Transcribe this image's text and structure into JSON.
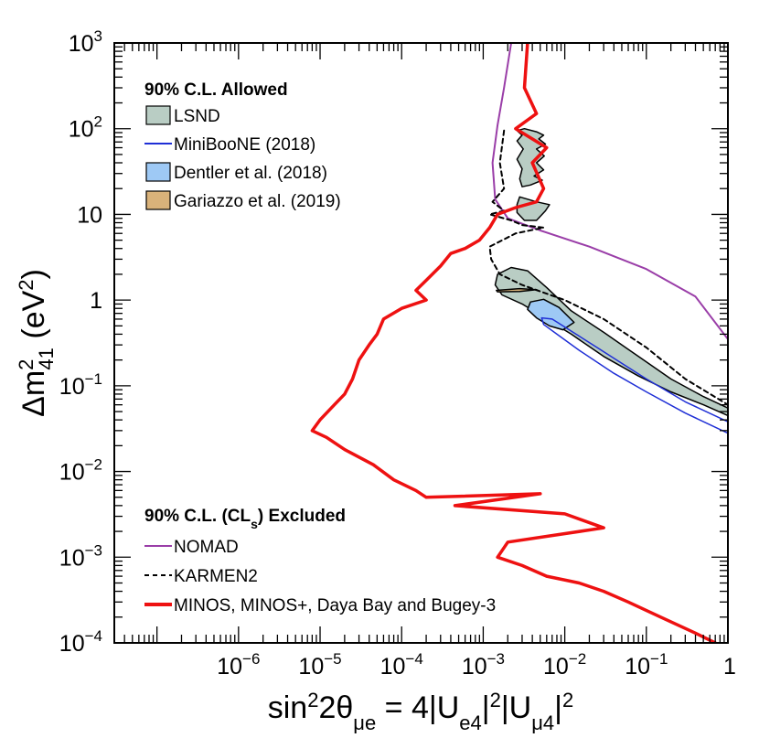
{
  "chart_data": {
    "type": "line",
    "x_scale": "log",
    "y_scale": "log",
    "xlim": [
      3e-08,
      1
    ],
    "ylim": [
      0.0001,
      1000
    ],
    "x_ticks": [
      {
        "value": 1e-06,
        "base": "10",
        "exp": "−6"
      },
      {
        "value": 1e-05,
        "base": "10",
        "exp": "−5"
      },
      {
        "value": 0.0001,
        "base": "10",
        "exp": "−4"
      },
      {
        "value": 0.001,
        "base": "10",
        "exp": "−3"
      },
      {
        "value": 0.01,
        "base": "10",
        "exp": "−2"
      },
      {
        "value": 0.1,
        "base": "10",
        "exp": "−1"
      },
      {
        "value": 1,
        "base": "1",
        "exp": ""
      }
    ],
    "y_ticks": [
      {
        "value": 0.0001,
        "base": "10",
        "exp": "−4"
      },
      {
        "value": 0.001,
        "base": "10",
        "exp": "−3"
      },
      {
        "value": 0.01,
        "base": "10",
        "exp": "−2"
      },
      {
        "value": 0.1,
        "base": "10",
        "exp": "−1"
      },
      {
        "value": 1,
        "base": "1",
        "exp": ""
      },
      {
        "value": 10,
        "base": "10",
        "exp": ""
      },
      {
        "value": 100,
        "base": "10",
        "exp": "2"
      },
      {
        "value": 1000,
        "base": "10",
        "exp": "3"
      }
    ],
    "xlabel": {
      "main": "sin",
      "sup1": "2",
      "part2": "2θ",
      "sub1": "μe",
      "part3": " = 4|U",
      "sub2": "e4",
      "part4": "|",
      "sup2": "2",
      "part5": "|U",
      "sub3": "μ4",
      "part6": "|",
      "sup3": "2"
    },
    "ylabel": {
      "main": "Δm",
      "sup": "2",
      "sub": "41",
      "rest": " (eV",
      "sup2": "2",
      "close": ")"
    },
    "legend_allowed": {
      "heading": "90% C.L. Allowed",
      "entries": [
        {
          "label": "LSND",
          "swatch": "box",
          "fill": "#b9cdc4",
          "stroke": "#000000"
        },
        {
          "label": "MiniBooNE (2018)",
          "swatch": "line",
          "color": "#1f2fd6"
        },
        {
          "label": "Dentler et al. (2018)",
          "swatch": "box",
          "fill": "#9ec9f5",
          "stroke": "#000000"
        },
        {
          "label": "Gariazzo et al. (2019)",
          "swatch": "box",
          "fill": "#d9b27a",
          "stroke": "#000000"
        }
      ]
    },
    "legend_excluded": {
      "heading_pre": "90% C.L. (CL",
      "heading_sub": "s",
      "heading_post": ") Excluded",
      "entries": [
        {
          "label": "NOMAD",
          "swatch": "line",
          "color": "#9a3ea8",
          "dash": "",
          "width": 2
        },
        {
          "label": "KARMEN2",
          "swatch": "line",
          "color": "#000000",
          "dash": "5,4",
          "width": 2
        },
        {
          "label": "MINOS, MINOS+, Daya Bay and Bugey-3",
          "swatch": "line",
          "color": "#ee1111",
          "dash": "",
          "width": 4
        }
      ]
    },
    "series": [
      {
        "name": "LSND",
        "kind": "region",
        "fill": "#b9cdc4",
        "stroke": "#000000",
        "points": [
          [
            0.0015,
            2.0
          ],
          [
            0.0022,
            2.4
          ],
          [
            0.0035,
            2.2
          ],
          [
            0.006,
            1.4
          ],
          [
            0.012,
            0.75
          ],
          [
            0.03,
            0.42
          ],
          [
            0.08,
            0.22
          ],
          [
            0.2,
            0.12
          ],
          [
            0.5,
            0.075
          ],
          [
            1.0,
            0.055
          ],
          [
            1.0,
            0.045
          ],
          [
            0.5,
            0.06
          ],
          [
            0.2,
            0.085
          ],
          [
            0.08,
            0.13
          ],
          [
            0.03,
            0.22
          ],
          [
            0.012,
            0.4
          ],
          [
            0.006,
            0.6
          ],
          [
            0.003,
            0.9
          ],
          [
            0.0017,
            1.15
          ],
          [
            0.0014,
            1.5
          ]
        ]
      },
      {
        "name": "LSND",
        "kind": "region",
        "fill": "#b9cdc4",
        "stroke": "#000000",
        "points": [
          [
            0.0028,
            16
          ],
          [
            0.0045,
            14
          ],
          [
            0.0065,
            13
          ],
          [
            0.0058,
            11
          ],
          [
            0.0045,
            8.5
          ],
          [
            0.0032,
            8.5
          ],
          [
            0.0026,
            10.5
          ],
          [
            0.0026,
            13
          ]
        ]
      },
      {
        "name": "LSND",
        "kind": "region",
        "fill": "#b9cdc4",
        "stroke": "#000000",
        "points": [
          [
            0.0026,
            95
          ],
          [
            0.0032,
            100
          ],
          [
            0.0045,
            92
          ],
          [
            0.0055,
            84
          ],
          [
            0.0048,
            76
          ],
          [
            0.0058,
            66
          ],
          [
            0.0045,
            58
          ],
          [
            0.0056,
            48
          ],
          [
            0.0045,
            40
          ],
          [
            0.0055,
            33
          ],
          [
            0.0042,
            28
          ],
          [
            0.0053,
            25
          ],
          [
            0.0038,
            22
          ],
          [
            0.003,
            21
          ],
          [
            0.0028,
            26
          ],
          [
            0.003,
            34
          ],
          [
            0.0026,
            44
          ],
          [
            0.0031,
            58
          ],
          [
            0.0026,
            72
          ],
          [
            0.003,
            84
          ]
        ]
      },
      {
        "name": "Dentler et al. (2018)",
        "kind": "region",
        "fill": "#9ec9f5",
        "stroke": "#000000",
        "points": [
          [
            0.0038,
            0.95
          ],
          [
            0.0055,
            1.02
          ],
          [
            0.0085,
            0.82
          ],
          [
            0.013,
            0.55
          ],
          [
            0.0095,
            0.45
          ],
          [
            0.0065,
            0.5
          ],
          [
            0.0045,
            0.62
          ],
          [
            0.0035,
            0.78
          ]
        ]
      },
      {
        "name": "Gariazzo et al. (2019)",
        "kind": "region",
        "fill": "#d9b27a",
        "stroke": "#000000",
        "points": [
          [
            0.00145,
            1.3
          ],
          [
            0.0028,
            1.36
          ],
          [
            0.0045,
            1.32
          ],
          [
            0.0028,
            1.26
          ],
          [
            0.0015,
            1.25
          ]
        ]
      },
      {
        "name": "MiniBooNE (2018)",
        "kind": "region",
        "fill": "none",
        "stroke": "#1f2fd6",
        "points": [
          [
            0.0052,
            0.62
          ],
          [
            0.007,
            0.6
          ],
          [
            0.015,
            0.38
          ],
          [
            0.04,
            0.21
          ],
          [
            0.1,
            0.12
          ],
          [
            0.3,
            0.065
          ],
          [
            1.0,
            0.038
          ],
          [
            1.0,
            0.028
          ],
          [
            0.3,
            0.048
          ],
          [
            0.1,
            0.085
          ],
          [
            0.04,
            0.14
          ],
          [
            0.015,
            0.26
          ],
          [
            0.008,
            0.4
          ],
          [
            0.0055,
            0.52
          ]
        ]
      },
      {
        "name": "NOMAD",
        "kind": "line",
        "color": "#9a3ea8",
        "width": 2,
        "dash": "",
        "points": [
          [
            0.0022,
            1000
          ],
          [
            0.0018,
            300
          ],
          [
            0.0015,
            110
          ],
          [
            0.0013,
            40
          ],
          [
            0.0014,
            15
          ],
          [
            0.002,
            9
          ],
          [
            0.005,
            6.5
          ],
          [
            0.02,
            4.2
          ],
          [
            0.1,
            2.3
          ],
          [
            0.4,
            1.1
          ],
          [
            1.0,
            0.35
          ]
        ]
      },
      {
        "name": "KARMEN2",
        "kind": "line",
        "color": "#000000",
        "width": 2,
        "dash": "5,4",
        "points": [
          [
            0.0018,
            95
          ],
          [
            0.0016,
            40
          ],
          [
            0.0018,
            20
          ],
          [
            0.0013,
            14
          ],
          [
            0.0018,
            11
          ],
          [
            0.0012,
            10
          ],
          [
            0.0022,
            8.5
          ],
          [
            0.003,
            7.5
          ],
          [
            0.0055,
            7
          ],
          [
            0.0025,
            6
          ],
          [
            0.0012,
            4.2
          ],
          [
            0.00125,
            3
          ],
          [
            0.0016,
            2
          ],
          [
            0.003,
            1.5
          ],
          [
            0.01,
            1.0
          ],
          [
            0.03,
            0.6
          ],
          [
            0.1,
            0.28
          ],
          [
            0.3,
            0.12
          ],
          [
            1.0,
            0.06
          ]
        ]
      },
      {
        "name": "MINOS, MINOS+, Daya Bay and Bugey-3",
        "kind": "line",
        "color": "#ee1111",
        "width": 3.5,
        "dash": "",
        "points": [
          [
            0.0035,
            1000
          ],
          [
            0.0032,
            300
          ],
          [
            0.0045,
            150
          ],
          [
            0.0025,
            100
          ],
          [
            0.006,
            60
          ],
          [
            0.004,
            40
          ],
          [
            0.0055,
            20
          ],
          [
            0.0045,
            14
          ],
          [
            0.0025,
            12
          ],
          [
            0.0015,
            10
          ],
          [
            0.0012,
            7
          ],
          [
            0.0009,
            5
          ],
          [
            0.0006,
            4
          ],
          [
            0.0004,
            3.5
          ],
          [
            0.0003,
            2.5
          ],
          [
            0.0002,
            1.7
          ],
          [
            0.00015,
            1.3
          ],
          [
            0.0002,
            1.0
          ],
          [
            0.0001,
            0.8
          ],
          [
            6e-05,
            0.6
          ],
          [
            5e-05,
            0.4
          ],
          [
            4e-05,
            0.3
          ],
          [
            3e-05,
            0.2
          ],
          [
            2.5e-05,
            0.12
          ],
          [
            2e-05,
            0.08
          ],
          [
            1.5e-05,
            0.06
          ],
          [
            1e-05,
            0.04
          ],
          [
            8e-06,
            0.03
          ],
          [
            1.2e-05,
            0.025
          ],
          [
            2e-05,
            0.018
          ],
          [
            4.5e-05,
            0.012
          ],
          [
            8e-05,
            0.008
          ],
          [
            0.00015,
            0.006
          ],
          [
            0.0002,
            0.005
          ],
          [
            0.005,
            0.0055
          ],
          [
            0.00045,
            0.004
          ],
          [
            0.01,
            0.0032
          ],
          [
            0.03,
            0.0022
          ],
          [
            0.002,
            0.0015
          ],
          [
            0.0015,
            0.001
          ],
          [
            0.003,
            0.0008
          ],
          [
            0.006,
            0.0006
          ],
          [
            0.015,
            0.0005
          ],
          [
            0.03,
            0.0004
          ],
          [
            0.06,
            0.0003
          ],
          [
            0.15,
            0.0002
          ],
          [
            0.4,
            0.00013
          ],
          [
            0.7,
            0.0001
          ]
        ]
      }
    ]
  }
}
